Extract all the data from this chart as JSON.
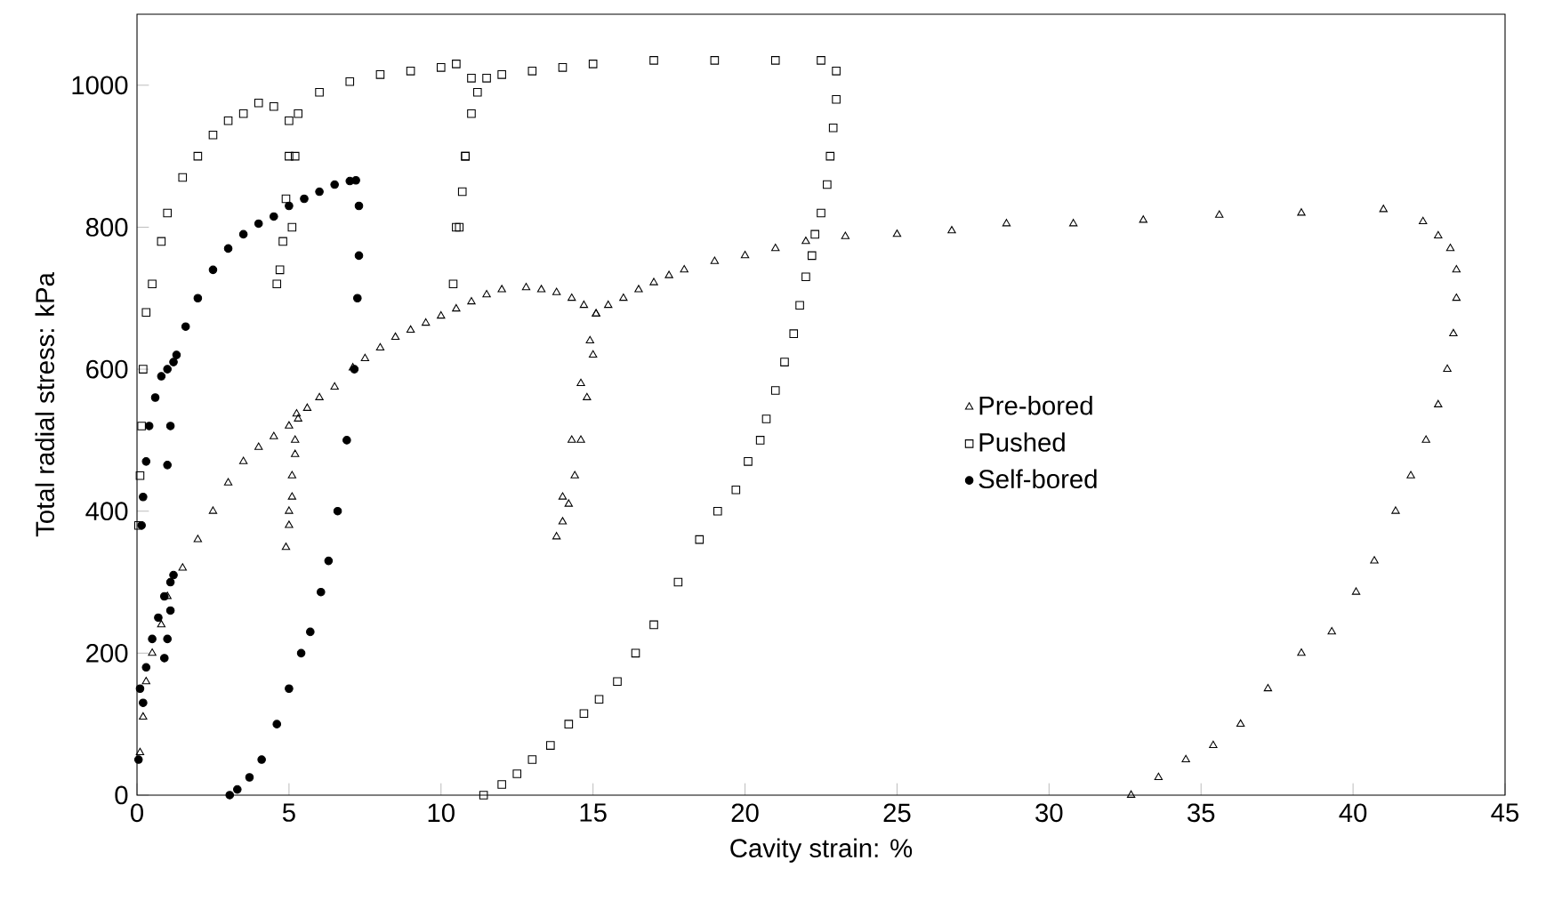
{
  "chart_data": {
    "type": "scatter",
    "xlabel": "Cavity strain: %",
    "ylabel": "Total radial stress: kPa",
    "xlim": [
      0,
      45
    ],
    "ylim": [
      0,
      1100
    ],
    "xticks": [
      0,
      5,
      10,
      15,
      20,
      25,
      30,
      35,
      40,
      45
    ],
    "yticks": [
      0,
      200,
      400,
      600,
      800,
      1000
    ],
    "grid": false,
    "legend": "right",
    "series": [
      {
        "name": "Pre-bored",
        "color": "#000000",
        "marker": "triangle",
        "x": [
          0.1,
          0.2,
          0.3,
          0.5,
          0.8,
          1.0,
          1.5,
          2.0,
          2.5,
          3.0,
          3.5,
          4.0,
          4.5,
          5.0,
          5.25,
          5.2,
          5.1,
          5.0,
          4.9,
          5.0,
          5.1,
          5.2,
          5.3,
          5.6,
          6.0,
          6.5,
          7.1,
          7.5,
          8,
          8.5,
          9,
          9.5,
          10,
          10.5,
          11,
          11.5,
          12,
          12.8,
          13.3,
          13.8,
          14.3,
          14.7,
          15.1,
          15.0,
          14.8,
          14.6,
          14.4,
          14.2,
          14.0,
          13.8,
          14.0,
          14.3,
          14.6,
          14.9,
          15.1,
          15.5,
          16,
          16.5,
          17,
          17.5,
          18,
          19,
          20,
          21,
          22,
          23.3,
          25,
          26.8,
          28.6,
          30.8,
          33.1,
          35.6,
          38.3,
          41.0,
          42.3,
          42.8,
          43.2,
          43.4,
          43.4,
          43.3,
          43.1,
          42.8,
          42.4,
          41.9,
          41.4,
          40.7,
          40.1,
          39.3,
          38.3,
          37.2,
          36.3,
          35.4,
          34.5,
          33.6,
          32.7
        ],
        "values": [
          60,
          110,
          160,
          200,
          240,
          280,
          320,
          360,
          400,
          440,
          470,
          490,
          505,
          520,
          537,
          480,
          420,
          380,
          349,
          400,
          450,
          500,
          530,
          545,
          560,
          575,
          602,
          615,
          630,
          645,
          655,
          665,
          675,
          685,
          695,
          705,
          712,
          715,
          712,
          708,
          700,
          690,
          678,
          620,
          560,
          500,
          450,
          410,
          385,
          364,
          420,
          500,
          580,
          640,
          678,
          690,
          700,
          712,
          722,
          732,
          740,
          752,
          760,
          770,
          780,
          787,
          790,
          795,
          805,
          805,
          810,
          817,
          820,
          825,
          808,
          788,
          770,
          740,
          700,
          650,
          600,
          550,
          500,
          450,
          400,
          330,
          286,
          230,
          200,
          150,
          100,
          70,
          50,
          25,
          0
        ]
      },
      {
        "name": "Pushed",
        "color": "#000000",
        "marker": "square",
        "x": [
          0.05,
          0.1,
          0.15,
          0.2,
          0.3,
          0.5,
          0.8,
          1,
          1.5,
          2,
          2.5,
          3,
          3.5,
          4,
          4.5,
          5,
          5,
          4.9,
          4.8,
          4.7,
          4.6,
          5.1,
          5.2,
          5.3,
          6,
          7,
          8,
          9,
          10,
          10.5,
          11,
          11,
          10.8,
          10.7,
          10.5,
          10.4,
          10.6,
          10.8,
          11.2,
          11.5,
          12,
          13,
          14,
          15,
          17,
          19,
          21,
          22.5,
          23,
          23,
          22.9,
          22.8,
          22.7,
          22.5,
          22.3,
          22.2,
          22,
          21.8,
          21.6,
          21.3,
          21,
          20.7,
          20.5,
          20.1,
          19.7,
          19.1,
          18.5,
          17.8,
          17,
          16.4,
          15.8,
          15.2,
          14.7,
          14.2,
          13.6,
          13,
          12.5,
          12,
          11.4
        ],
        "values": [
          380,
          450,
          520,
          600,
          680,
          720,
          780,
          820,
          870,
          900,
          930,
          950,
          960,
          975,
          970,
          950,
          900,
          840,
          780,
          740,
          720,
          800,
          900,
          960,
          990,
          1005,
          1015,
          1020,
          1025,
          1030,
          1010,
          960,
          900,
          850,
          800,
          720,
          800,
          900,
          990,
          1010,
          1015,
          1020,
          1025,
          1030,
          1035,
          1035,
          1035,
          1035,
          1020,
          980,
          940,
          900,
          860,
          820,
          790,
          760,
          730,
          690,
          650,
          610,
          570,
          530,
          500,
          470,
          430,
          400,
          360,
          300,
          240,
          200,
          160,
          135,
          115,
          100,
          70,
          50,
          30,
          15,
          0
        ]
      },
      {
        "name": "Self-bored",
        "color": "#000000",
        "marker": "circle",
        "x": [
          0.05,
          0.1,
          0.2,
          0.3,
          0.5,
          0.7,
          0.9,
          1.1,
          1.2,
          1.1,
          1.0,
          0.9,
          0.15,
          0.2,
          0.3,
          0.4,
          0.6,
          0.8,
          1.0,
          1.2,
          1.1,
          1.0,
          1.3,
          1.6,
          2,
          2.5,
          3,
          3.5,
          4,
          4.5,
          5,
          5.5,
          6,
          6.5,
          7,
          7.2,
          7.3,
          7.3,
          7.25,
          7.15,
          6.9,
          6.6,
          6.3,
          6.05,
          5.7,
          5.4,
          5.0,
          4.6,
          4.1,
          3.7,
          3.3,
          3.05
        ],
        "values": [
          50,
          150,
          130,
          180,
          220,
          250,
          280,
          300,
          310,
          260,
          220,
          193,
          380,
          420,
          470,
          520,
          560,
          590,
          600,
          610,
          520,
          465,
          620,
          660,
          700,
          740,
          770,
          790,
          805,
          815,
          830,
          840,
          850,
          860,
          865,
          866,
          830,
          760,
          700,
          600,
          500,
          400,
          330,
          286,
          230,
          200,
          150,
          100,
          50,
          25,
          8,
          0
        ]
      }
    ]
  }
}
